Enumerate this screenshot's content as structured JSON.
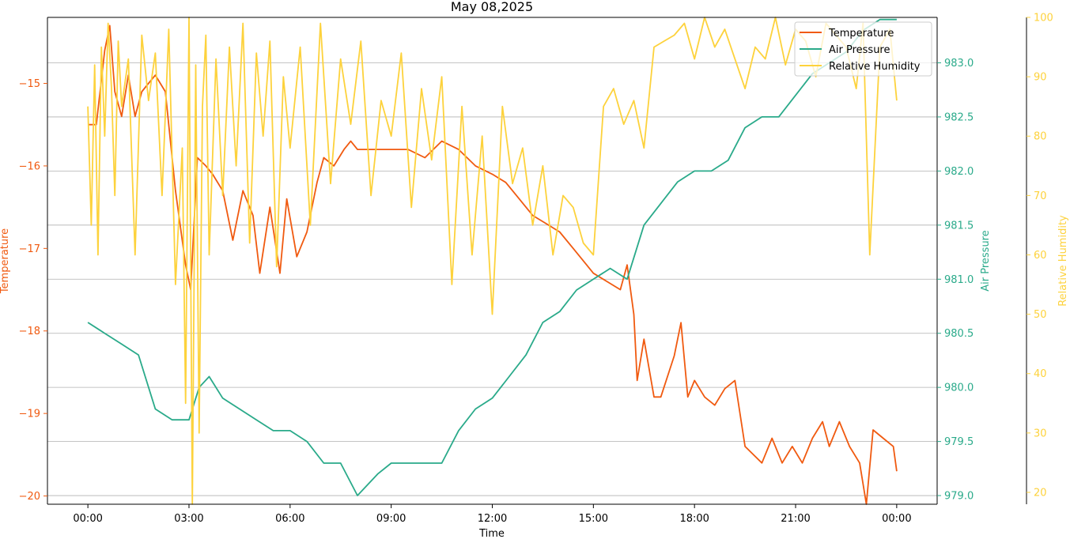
{
  "chart_data": {
    "type": "line",
    "title": "May 08,2025",
    "xlabel": "Time",
    "x_ticks": [
      "00:00",
      "03:00",
      "06:00",
      "09:00",
      "12:00",
      "15:00",
      "18:00",
      "21:00",
      "00:00"
    ],
    "x_range_hours": [
      -1.2,
      25.2
    ],
    "grid": "horizontal lines at right-axis ticks",
    "legend_position": "top-right",
    "axes": [
      {
        "id": "temperature",
        "label": "Temperature",
        "side": "left",
        "color": "#f05a10",
        "ylim": [
          -20.1,
          -14.2
        ],
        "ticks": [
          -20,
          -19,
          -18,
          -17,
          -16,
          -15
        ],
        "tick_labels": [
          "−20",
          "−19",
          "−18",
          "−17",
          "−16",
          "−15"
        ]
      },
      {
        "id": "pressure",
        "label": "Air Pressure",
        "side": "right",
        "color": "#2aaa8a",
        "ylim": [
          978.92,
          983.42
        ],
        "ticks": [
          979.0,
          979.5,
          980.0,
          980.5,
          981.0,
          981.5,
          982.0,
          982.5,
          983.0
        ],
        "tick_labels": [
          "979.0",
          "979.5",
          "980.0",
          "980.5",
          "981.0",
          "981.5",
          "982.0",
          "982.5",
          "983.0"
        ]
      },
      {
        "id": "humidity",
        "label": "Relative Humidity",
        "side": "right-outer",
        "color": "#fdd23c",
        "ylim": [
          18,
          100
        ],
        "ticks": [
          20,
          30,
          40,
          50,
          60,
          70,
          80,
          90,
          100
        ],
        "tick_labels": [
          "20",
          "30",
          "40",
          "50",
          "60",
          "70",
          "80",
          "90",
          "100"
        ]
      }
    ],
    "series": [
      {
        "name": "Temperature",
        "axis": "temperature",
        "color": "#f05a10",
        "x": [
          0,
          0.25,
          0.5,
          0.65,
          0.8,
          1.0,
          1.2,
          1.4,
          1.6,
          1.8,
          2.0,
          2.3,
          2.6,
          2.9,
          3.05,
          3.25,
          3.5,
          3.7,
          4.0,
          4.3,
          4.6,
          4.9,
          5.1,
          5.4,
          5.7,
          5.9,
          6.2,
          6.5,
          6.8,
          7.0,
          7.3,
          7.6,
          7.8,
          8.0,
          8.5,
          9.0,
          9.5,
          10.0,
          10.5,
          11.0,
          11.5,
          12.0,
          12.4,
          12.8,
          13.2,
          13.6,
          14.0,
          14.4,
          14.8,
          15.0,
          15.4,
          15.8,
          16.0,
          16.2,
          16.3,
          16.5,
          16.8,
          17.0,
          17.4,
          17.6,
          17.8,
          18.0,
          18.3,
          18.6,
          18.9,
          19.2,
          19.5,
          20.0,
          20.3,
          20.6,
          20.9,
          21.2,
          21.5,
          21.8,
          22.0,
          22.3,
          22.6,
          22.9,
          23.1,
          23.3,
          23.6,
          23.9,
          24.0
        ],
        "y": [
          -15.5,
          -15.5,
          -14.6,
          -14.3,
          -15.1,
          -15.4,
          -14.9,
          -15.4,
          -15.1,
          -15.0,
          -14.9,
          -15.1,
          -16.3,
          -17.2,
          -17.5,
          -15.9,
          -16.0,
          -16.1,
          -16.3,
          -16.9,
          -16.3,
          -16.6,
          -17.3,
          -16.5,
          -17.3,
          -16.4,
          -17.1,
          -16.8,
          -16.2,
          -15.9,
          -16.0,
          -15.8,
          -15.7,
          -15.8,
          -15.8,
          -15.8,
          -15.8,
          -15.9,
          -15.7,
          -15.8,
          -16.0,
          -16.1,
          -16.2,
          -16.4,
          -16.6,
          -16.7,
          -16.8,
          -17.0,
          -17.2,
          -17.3,
          -17.4,
          -17.5,
          -17.2,
          -17.8,
          -18.6,
          -18.1,
          -18.8,
          -18.8,
          -18.3,
          -17.9,
          -18.8,
          -18.6,
          -18.8,
          -18.9,
          -18.7,
          -18.6,
          -19.4,
          -19.6,
          -19.3,
          -19.6,
          -19.4,
          -19.6,
          -19.3,
          -19.1,
          -19.4,
          -19.1,
          -19.4,
          -19.6,
          -20.1,
          -19.2,
          -19.3,
          -19.4,
          -19.7
        ]
      },
      {
        "name": "Air Pressure",
        "axis": "pressure",
        "color": "#2aaa8a",
        "x": [
          0,
          0.5,
          1.0,
          1.5,
          2.0,
          2.5,
          3.0,
          3.3,
          3.6,
          4.0,
          4.5,
          5.0,
          5.5,
          6.0,
          6.5,
          7.0,
          7.5,
          8.0,
          8.3,
          8.6,
          9.0,
          9.5,
          10.0,
          10.5,
          11.0,
          11.5,
          12.0,
          12.5,
          13.0,
          13.5,
          14.0,
          14.5,
          15.0,
          15.5,
          16.0,
          16.5,
          17.0,
          17.5,
          18.0,
          18.5,
          19.0,
          19.5,
          20.0,
          20.5,
          21.0,
          21.5,
          22.0,
          22.5,
          23.0,
          23.5,
          24.0
        ],
        "y": [
          980.6,
          980.5,
          980.4,
          980.3,
          979.8,
          979.7,
          979.7,
          980.0,
          980.1,
          979.9,
          979.8,
          979.7,
          979.6,
          979.6,
          979.5,
          979.3,
          979.3,
          979.0,
          979.1,
          979.2,
          979.3,
          979.3,
          979.3,
          979.3,
          979.6,
          979.8,
          979.9,
          980.1,
          980.3,
          980.6,
          980.7,
          980.9,
          981.0,
          981.1,
          981.0,
          981.5,
          981.7,
          981.9,
          982.0,
          982.0,
          982.1,
          982.4,
          982.5,
          982.5,
          982.7,
          982.9,
          983.0,
          983.1,
          983.3,
          983.4,
          983.4
        ]
      },
      {
        "name": "Relative Humidity",
        "axis": "humidity",
        "color": "#fdd23c",
        "x": [
          0,
          0.1,
          0.2,
          0.3,
          0.4,
          0.5,
          0.6,
          0.7,
          0.8,
          0.9,
          1.0,
          1.2,
          1.4,
          1.6,
          1.8,
          2.0,
          2.2,
          2.4,
          2.6,
          2.8,
          2.9,
          3.0,
          3.1,
          3.2,
          3.3,
          3.4,
          3.5,
          3.6,
          3.8,
          4.0,
          4.2,
          4.4,
          4.6,
          4.8,
          5.0,
          5.2,
          5.4,
          5.6,
          5.8,
          6.0,
          6.3,
          6.6,
          6.9,
          7.2,
          7.5,
          7.8,
          8.1,
          8.4,
          8.7,
          9.0,
          9.3,
          9.6,
          9.9,
          10.2,
          10.5,
          10.8,
          11.1,
          11.4,
          11.7,
          12.0,
          12.3,
          12.6,
          12.9,
          13.2,
          13.5,
          13.8,
          14.1,
          14.4,
          14.7,
          15.0,
          15.3,
          15.6,
          15.9,
          16.2,
          16.5,
          16.8,
          17.1,
          17.4,
          17.7,
          18.0,
          18.3,
          18.6,
          18.9,
          19.2,
          19.5,
          19.8,
          20.1,
          20.4,
          20.7,
          21.0,
          21.3,
          21.6,
          21.9,
          22.2,
          22.5,
          22.8,
          23.0,
          23.2,
          23.5,
          23.8,
          24.0
        ],
        "y": [
          85,
          65,
          92,
          60,
          95,
          80,
          99,
          88,
          70,
          96,
          85,
          93,
          60,
          97,
          86,
          94,
          70,
          98,
          55,
          78,
          35,
          100,
          18,
          92,
          30,
          85,
          97,
          60,
          93,
          70,
          95,
          75,
          99,
          62,
          94,
          80,
          96,
          58,
          90,
          78,
          95,
          65,
          99,
          72,
          93,
          82,
          96,
          70,
          86,
          80,
          94,
          68,
          88,
          76,
          90,
          55,
          85,
          60,
          80,
          50,
          85,
          72,
          78,
          65,
          75,
          60,
          70,
          68,
          62,
          60,
          85,
          88,
          82,
          86,
          78,
          95,
          96,
          97,
          99,
          93,
          100,
          95,
          98,
          93,
          88,
          95,
          93,
          100,
          92,
          98,
          96,
          90,
          99,
          97,
          95,
          88,
          99,
          60,
          95,
          98,
          86
        ]
      }
    ]
  }
}
